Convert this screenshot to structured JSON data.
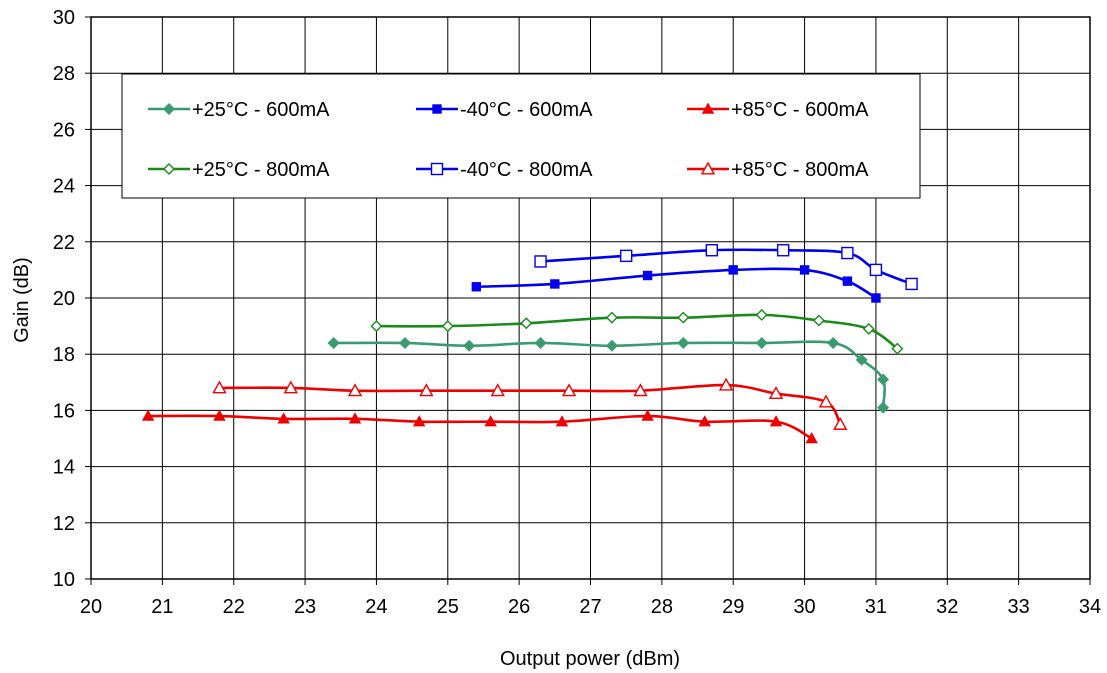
{
  "chart_data": {
    "type": "line",
    "xlabel": "Output power (dBm)",
    "ylabel": "Gain (dB)",
    "xlim": [
      20,
      34
    ],
    "ylim": [
      10,
      30
    ],
    "xticks": [
      20,
      21,
      22,
      23,
      24,
      25,
      26,
      27,
      28,
      29,
      30,
      31,
      32,
      33,
      34
    ],
    "yticks": [
      10,
      12,
      14,
      16,
      18,
      20,
      22,
      24,
      26,
      28,
      30
    ],
    "grid": true,
    "legend_position": "top-left inside",
    "series": [
      {
        "name": "+25°C - 600mA",
        "color": "#3a9b6e",
        "marker": "diamond",
        "filled": true,
        "x": [
          23.4,
          24.4,
          25.3,
          26.3,
          27.3,
          28.3,
          29.4,
          30.4,
          30.8,
          31.1,
          31.1
        ],
        "y": [
          18.4,
          18.4,
          18.3,
          18.4,
          18.3,
          18.4,
          18.4,
          18.4,
          17.8,
          17.1,
          16.1
        ]
      },
      {
        "name": "-40°C - 600mA",
        "color": "#0000ee",
        "marker": "square",
        "filled": true,
        "x": [
          25.4,
          26.5,
          27.8,
          29.0,
          30.0,
          30.6,
          31.0
        ],
        "y": [
          20.4,
          20.5,
          20.8,
          21.0,
          21.0,
          20.6,
          20.0
        ]
      },
      {
        "name": "+85°C - 600mA",
        "color": "#ee0000",
        "marker": "triangle",
        "filled": true,
        "x": [
          20.8,
          21.8,
          22.7,
          23.7,
          24.6,
          25.6,
          26.6,
          27.8,
          28.6,
          29.6,
          30.1
        ],
        "y": [
          15.8,
          15.8,
          15.7,
          15.7,
          15.6,
          15.6,
          15.6,
          15.8,
          15.6,
          15.6,
          15.0
        ]
      },
      {
        "name": "+25°C - 800mA",
        "color": "#1a8a1a",
        "marker": "diamond",
        "filled": false,
        "x": [
          24.0,
          25.0,
          26.1,
          27.3,
          28.3,
          29.4,
          30.2,
          30.9,
          31.3
        ],
        "y": [
          19.0,
          19.0,
          19.1,
          19.3,
          19.3,
          19.4,
          19.2,
          18.9,
          18.2
        ]
      },
      {
        "name": "-40°C - 800mA",
        "color": "#0000ee",
        "marker": "square",
        "filled": false,
        "x": [
          26.3,
          27.5,
          28.7,
          29.7,
          30.6,
          31.0,
          31.5
        ],
        "y": [
          21.3,
          21.5,
          21.7,
          21.7,
          21.6,
          21.0,
          20.5
        ]
      },
      {
        "name": "+85°C - 800mA",
        "color": "#ee0000",
        "marker": "triangle",
        "filled": false,
        "x": [
          21.8,
          22.8,
          23.7,
          24.7,
          25.7,
          26.7,
          27.7,
          28.9,
          29.6,
          30.3,
          30.5
        ],
        "y": [
          16.8,
          16.8,
          16.7,
          16.7,
          16.7,
          16.7,
          16.7,
          16.9,
          16.6,
          16.3,
          15.5
        ]
      }
    ]
  }
}
